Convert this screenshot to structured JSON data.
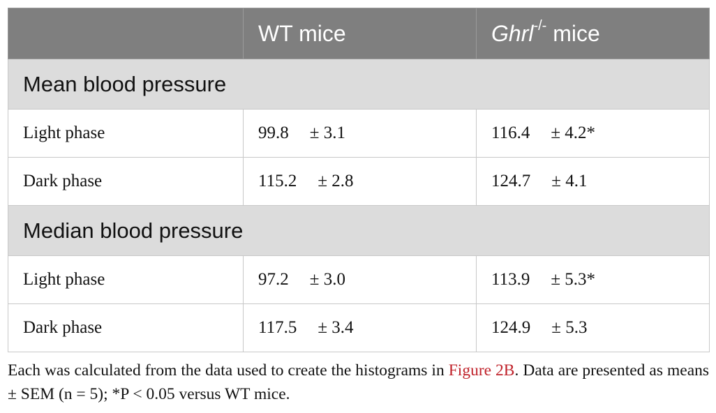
{
  "table": {
    "header": {
      "wt": "WT mice",
      "ko": {
        "gene": "Ghrl",
        "superscript": "-/-",
        "suffix": "mice"
      }
    },
    "sections": [
      {
        "title": "Mean blood pressure",
        "rows": [
          {
            "label": "Light phase",
            "wt": {
              "mean": "99.8",
              "sem": "± 3.1"
            },
            "ko": {
              "mean": "116.4",
              "sem": "± 4.2*"
            }
          },
          {
            "label": "Dark phase",
            "wt": {
              "mean": "115.2",
              "sem": "± 2.8"
            },
            "ko": {
              "mean": "124.7",
              "sem": "± 4.1"
            }
          }
        ]
      },
      {
        "title": "Median blood pressure",
        "rows": [
          {
            "label": "Light phase",
            "wt": {
              "mean": "97.2",
              "sem": "± 3.0"
            },
            "ko": {
              "mean": "113.9",
              "sem": "± 5.3*"
            }
          },
          {
            "label": "Dark phase",
            "wt": {
              "mean": "117.5",
              "sem": "± 3.4"
            },
            "ko": {
              "mean": "124.9",
              "sem": "± 5.3"
            }
          }
        ]
      }
    ]
  },
  "footnote": {
    "before": "Each was calculated from the data used to create the histograms in",
    "link": "Figure 2B",
    "after": ". Data are presented as means ± SEM (n = 5); *P < 0.05 versus WT mice."
  }
}
